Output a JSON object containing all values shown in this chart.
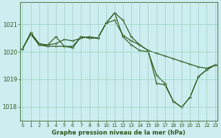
{
  "title": "Graphe pression niveau de la mer (hPa)",
  "background_color": "#cceef0",
  "grid_color": "#99ccbb",
  "line_color": "#2d5a1e",
  "x_ticks": [
    0,
    1,
    2,
    3,
    4,
    5,
    6,
    7,
    8,
    9,
    10,
    11,
    12,
    13,
    14,
    15,
    16,
    17,
    18,
    19,
    20,
    21,
    22,
    23
  ],
  "y_ticks": [
    1018,
    1019,
    1020,
    1021
  ],
  "ylim": [
    1017.5,
    1021.8
  ],
  "xlim": [
    -0.3,
    23.3
  ],
  "series": [
    [
      1020.1,
      1020.7,
      1020.3,
      1020.25,
      1020.3,
      1020.45,
      1020.4,
      1020.5,
      1020.55,
      1020.5,
      1021.05,
      1021.15,
      1020.6,
      1020.4,
      1020.25,
      1020.05,
      1019.95,
      1019.85,
      1019.75,
      1019.65,
      1019.55,
      1019.45,
      1019.4,
      1019.52
    ],
    [
      1020.1,
      1020.65,
      1020.25,
      1020.25,
      1020.55,
      1020.2,
      1020.2,
      1020.55,
      1020.5,
      1020.5,
      1021.05,
      1021.42,
      1021.15,
      1020.55,
      1020.25,
      1020.05,
      1018.85,
      1018.8,
      1018.2,
      1017.98,
      1018.35,
      1019.1,
      1019.35,
      1019.52
    ],
    [
      1020.1,
      1020.65,
      1020.25,
      1020.2,
      1020.2,
      1020.2,
      1020.15,
      1020.55,
      1020.5,
      1020.5,
      1021.05,
      1021.42,
      1020.55,
      1020.25,
      1020.05,
      1020.0,
      1019.15,
      1018.85,
      1018.2,
      1017.98,
      1018.35,
      1019.1,
      1019.35,
      1019.52
    ]
  ]
}
